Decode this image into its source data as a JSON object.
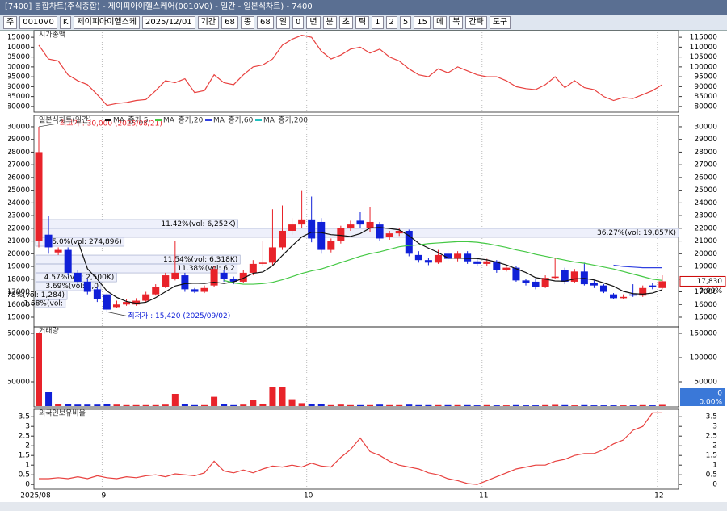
{
  "window": {
    "title": "[7400] 통합차트(주식종합) - 제이피아이헬스케어(0010V0) - 일간 - 일본식차트) - 7400",
    "toolbar": [
      "주",
      "0010V0",
      "K",
      "제이피아이헬스케",
      "2025/12/01",
      "기간",
      "68",
      "종",
      "68",
      "일",
      "0",
      "년",
      "분",
      "초",
      "틱",
      "1",
      "2",
      "5",
      "15",
      "메",
      "복",
      "간략",
      "도구"
    ]
  },
  "x_labels": [
    {
      "index": 0,
      "label": "2025/08"
    },
    {
      "index": 7,
      "label": "9"
    },
    {
      "index": 28,
      "label": "10"
    },
    {
      "index": 46,
      "label": "11"
    },
    {
      "index": 64,
      "label": "12"
    }
  ],
  "chart_data": [
    {
      "type": "line",
      "title": "시가총액",
      "ylim": [
        77500,
        117500
      ],
      "yticks": [
        80000,
        85000,
        90000,
        95000,
        100000,
        105000,
        110000,
        115000
      ],
      "series": [
        {
          "name": "시가총액",
          "color": "#e8413f",
          "values": [
            111000,
            104000,
            103000,
            96000,
            93000,
            91000,
            86000,
            80500,
            81500,
            82000,
            83000,
            83500,
            88000,
            93000,
            92000,
            94000,
            87000,
            88000,
            96000,
            92000,
            91000,
            96000,
            100000,
            101000,
            104000,
            111000,
            114000,
            116000,
            115000,
            108000,
            104000,
            106000,
            109000,
            110000,
            107000,
            109000,
            105000,
            103000,
            99000,
            96000,
            95000,
            99000,
            97000,
            100000,
            98000,
            96000,
            95000,
            95000,
            93000,
            90000,
            89000,
            88500,
            91000,
            95000,
            89500,
            93000,
            89500,
            88500,
            85000,
            83000,
            84500,
            84000,
            86000,
            88000,
            91000
          ]
        }
      ]
    },
    {
      "type": "candlestick",
      "title": "일본식차트(일간)",
      "ylim": [
        14300,
        30760
      ],
      "yticks": [
        15000,
        16000,
        17000,
        18000,
        19000,
        20000,
        21000,
        22000,
        23000,
        24000,
        25000,
        26000,
        27000,
        28000,
        29000,
        30000
      ],
      "up_color": "#e8232a",
      "down_color": "#1020d8",
      "open": [
        21000,
        21500,
        20100,
        20300,
        18500,
        17800,
        17200,
        16800,
        15800,
        16000,
        16000,
        16300,
        16800,
        17400,
        18000,
        18300,
        17200,
        17000,
        17500,
        18500,
        18000,
        17800,
        18500,
        19200,
        19300,
        20500,
        21800,
        22300,
        22700,
        22500,
        20300,
        21000,
        22000,
        22600,
        22000,
        22300,
        21300,
        21600,
        21800,
        19900,
        19500,
        19300,
        20000,
        19600,
        20000,
        19400,
        19200,
        19400,
        18700,
        18900,
        17900,
        17800,
        17400,
        18100,
        18700,
        17800,
        18600,
        17700,
        17500,
        16800,
        16500,
        16800,
        16700,
        17500,
        17300
      ],
      "high": [
        30000,
        23000,
        20500,
        20500,
        18700,
        18000,
        17400,
        16900,
        16300,
        16400,
        16500,
        17000,
        17600,
        18500,
        21000,
        18500,
        17300,
        17500,
        19000,
        18700,
        18200,
        18700,
        19500,
        21000,
        23500,
        23800,
        22800,
        25000,
        24500,
        22800,
        21200,
        22200,
        22600,
        23300,
        23700,
        22500,
        21800,
        22000,
        21900,
        20200,
        19700,
        20300,
        20300,
        20200,
        20200,
        19600,
        19600,
        19500,
        19100,
        19000,
        18000,
        18000,
        18300,
        19700,
        18900,
        18800,
        19300,
        17900,
        17600,
        16900,
        16800,
        17600,
        17500,
        17700,
        18300
      ],
      "low": [
        20500,
        20000,
        19900,
        18300,
        17600,
        16800,
        16200,
        15420,
        15700,
        15900,
        15900,
        16200,
        16700,
        17300,
        17900,
        17000,
        16900,
        16900,
        17400,
        17800,
        17600,
        17700,
        18300,
        19000,
        19100,
        20300,
        21500,
        22000,
        20900,
        20000,
        20100,
        20800,
        21800,
        22000,
        21700,
        21000,
        21100,
        21400,
        19800,
        19300,
        19100,
        19200,
        19400,
        19400,
        19200,
        19000,
        19000,
        18500,
        18600,
        17800,
        17500,
        17200,
        17300,
        18000,
        17600,
        17700,
        17500,
        17300,
        16900,
        16400,
        16400,
        16600,
        16600,
        17200,
        17200
      ],
      "close": [
        28000,
        20500,
        20300,
        18500,
        17800,
        17000,
        16400,
        15600,
        16000,
        16200,
        16300,
        16800,
        17400,
        18300,
        18500,
        17200,
        17000,
        17300,
        18800,
        18000,
        17800,
        18500,
        19200,
        19300,
        20500,
        21800,
        22300,
        22700,
        21200,
        20300,
        21000,
        22000,
        22300,
        22300,
        22500,
        21200,
        21600,
        21800,
        20000,
        19500,
        19300,
        19900,
        19600,
        20000,
        19400,
        19200,
        19400,
        18700,
        18900,
        17900,
        17700,
        17400,
        18100,
        18200,
        17800,
        18600,
        17600,
        17500,
        17000,
        16500,
        16600,
        16700,
        17300,
        17400,
        17830
      ],
      "series": [
        {
          "name": "MA_종가,5",
          "color": "#111111",
          "values": [
            null,
            null,
            null,
            null,
            21020,
            18820,
            18000,
            17060,
            16560,
            16240,
            16100,
            16180,
            16540,
            17000,
            17460,
            17640,
            17680,
            17660,
            17760,
            17660,
            17780,
            18080,
            18460,
            18560,
            19060,
            19860,
            20620,
            21320,
            21700,
            21660,
            21500,
            21440,
            21360,
            21580,
            22020,
            22060,
            21980,
            21880,
            21420,
            20820,
            20440,
            20100,
            19660,
            19660,
            19640,
            19620,
            19520,
            19340,
            19120,
            18820,
            18520,
            18120,
            18000,
            17860,
            17840,
            18020,
            18060,
            17940,
            17700,
            17440,
            17040,
            16860,
            16820,
            16900,
            17166
          ]
        },
        {
          "name": "MA_종가,20",
          "color": "#44c844",
          "values": [
            null,
            null,
            null,
            null,
            null,
            null,
            null,
            null,
            null,
            null,
            null,
            null,
            null,
            null,
            null,
            null,
            null,
            null,
            null,
            17900,
            17700,
            17600,
            17600,
            17650,
            17750,
            17950,
            18200,
            18450,
            18650,
            18800,
            19050,
            19300,
            19550,
            19800,
            20000,
            20150,
            20350,
            20550,
            20650,
            20700,
            20800,
            20850,
            20900,
            20950,
            20950,
            20900,
            20800,
            20650,
            20500,
            20300,
            20150,
            19950,
            19800,
            19650,
            19500,
            19350,
            19250,
            19100,
            18950,
            18800,
            18600,
            18400,
            18200,
            18000,
            17900
          ]
        },
        {
          "name": "MA_종가,60",
          "color": "#3040e0",
          "values": [
            null,
            null,
            null,
            null,
            null,
            null,
            null,
            null,
            null,
            null,
            null,
            null,
            null,
            null,
            null,
            null,
            null,
            null,
            null,
            null,
            null,
            null,
            null,
            null,
            null,
            null,
            null,
            null,
            null,
            null,
            null,
            null,
            null,
            null,
            null,
            null,
            null,
            null,
            null,
            null,
            null,
            null,
            null,
            null,
            null,
            null,
            null,
            null,
            null,
            null,
            null,
            null,
            null,
            null,
            null,
            null,
            null,
            null,
            null,
            19100,
            19000,
            18950,
            18900,
            18900,
            18900
          ]
        },
        {
          "name": "MA_종가,200",
          "color": "#20c0c0",
          "values": []
        }
      ],
      "price_profile": [
        {
          "percent": 11.42,
          "label": "11.42%(vol: 6,252K)",
          "range": [
            21990,
            22690
          ]
        },
        {
          "percent": 36.27,
          "label": "36.27%(vol: 19,857K)",
          "range": [
            21290,
            21990
          ]
        },
        {
          "percent": 5.0,
          "label": "5.0%(vol: 274,896)",
          "range": [
            20590,
            21290
          ]
        },
        {
          "percent": 11.54,
          "label": "11.54%(vol: 6,318K)",
          "range": [
            19190,
            19890
          ]
        },
        {
          "percent": 11.38,
          "label": "11.38%(vol: 6,2",
          "range": [
            18490,
            19190
          ]
        },
        {
          "percent": 4.57,
          "label": "4.57%(vol: 2,500K)",
          "range": [
            17790,
            18490
          ]
        },
        {
          "percent": 3.69,
          "label": "3.69%(vol: 2,0",
          "range": [
            17090,
            17790
          ]
        },
        {
          "percent": 1.78,
          "label": "1.78%(vol: 1,284)",
          "range": [
            16390,
            17090
          ]
        },
        {
          "percent": 1.68,
          "label": "1.68%(vol:",
          "range": [
            15760,
            16390
          ]
        }
      ],
      "annotations": [
        {
          "text": "최고가 : 30,000 (2025/08/21)",
          "index": 0,
          "value": 30000,
          "color": "#e8232a"
        },
        {
          "text": "최저가 : 15,420 (2025/09/02)",
          "index": 7,
          "value": 15420,
          "color": "#1020d8"
        }
      ],
      "current_price": {
        "value": 17830,
        "label": "17,830"
      },
      "change_label": "0.00%"
    },
    {
      "type": "bar",
      "title": "거래량",
      "ylim": [
        0,
        160000
      ],
      "yticks": [
        50000,
        100000,
        150000
      ],
      "current_label": "0",
      "change_label": "0.00%",
      "values": [
        150000,
        30000,
        5000,
        4000,
        3000,
        3000,
        3000,
        5000,
        3000,
        2000,
        2000,
        2000,
        2000,
        3000,
        25000,
        5000,
        2000,
        2000,
        19000,
        4000,
        2000,
        3000,
        12000,
        5000,
        40000,
        40000,
        14000,
        6000,
        5000,
        4000,
        2000,
        3000,
        2000,
        2000,
        2000,
        3000,
        2000,
        2000,
        3000,
        2000,
        2000,
        2000,
        2000,
        2000,
        2000,
        1500,
        2000,
        1500,
        1500,
        2000,
        1500,
        1500,
        2000,
        2500,
        2000,
        1500,
        2000,
        1500,
        1500,
        1500,
        1500,
        1500,
        2000,
        1500,
        2500
      ]
    },
    {
      "type": "line",
      "title": "외국인보유비율",
      "ylim": [
        -0.2,
        3.8
      ],
      "yticks": [
        0,
        0.5,
        1,
        1.5,
        2,
        2.5,
        3,
        3.5
      ],
      "series": [
        {
          "name": "외국인보유비율",
          "color": "#e8413f",
          "values": [
            0.3,
            0.3,
            0.35,
            0.3,
            0.4,
            0.3,
            0.45,
            0.35,
            0.3,
            0.4,
            0.35,
            0.45,
            0.5,
            0.4,
            0.55,
            0.5,
            0.45,
            0.6,
            1.2,
            0.7,
            0.6,
            0.75,
            0.6,
            0.8,
            0.95,
            0.9,
            1.0,
            0.9,
            1.1,
            0.95,
            0.9,
            1.4,
            1.8,
            2.4,
            1.7,
            1.5,
            1.2,
            1.0,
            0.9,
            0.8,
            0.6,
            0.5,
            0.3,
            0.2,
            0.05,
            0.0,
            0.2,
            0.4,
            0.6,
            0.8,
            0.9,
            1.0,
            1.0,
            1.2,
            1.3,
            1.5,
            1.6,
            1.6,
            1.8,
            2.1,
            2.3,
            2.8,
            3.0,
            3.7,
            3.7
          ]
        }
      ]
    }
  ]
}
